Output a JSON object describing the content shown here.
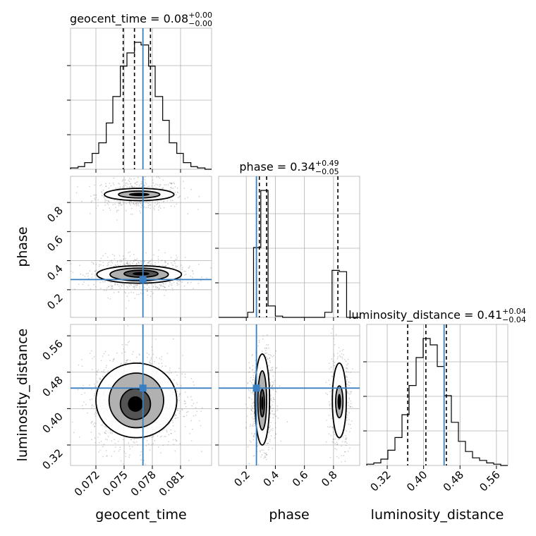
{
  "chart_data": {
    "type": "corner",
    "parameters": [
      "geocent_time",
      "phase",
      "luminosity_distance"
    ],
    "titles": [
      {
        "name": "geocent_time",
        "median": "0.08",
        "plus": "+0.00",
        "minus": "−0.00"
      },
      {
        "name": "phase",
        "median": "0.34",
        "plus": "+0.49",
        "minus": "−0.05"
      },
      {
        "name": "luminosity_distance",
        "median": "0.41",
        "plus": "+0.04",
        "minus": "−0.04"
      }
    ],
    "axes": {
      "geocent_time": {
        "range": [
          0.0693,
          0.0843
        ],
        "ticks": [
          "0.072",
          "0.075",
          "0.078",
          "0.081"
        ]
      },
      "phase": {
        "range": [
          0.01,
          0.98
        ],
        "ticks": [
          "0.2",
          "0.4",
          "0.6",
          "0.8"
        ]
      },
      "luminosity_distance": {
        "range": [
          0.275,
          0.585
        ],
        "ticks": [
          "0.32",
          "0.40",
          "0.48",
          "0.56"
        ]
      }
    },
    "truths": {
      "geocent_time": 0.077,
      "phase": 0.27,
      "luminosity_distance": 0.445
    },
    "quantiles": {
      "geocent_time": [
        0.0749,
        0.0761,
        0.0778
      ],
      "phase": [
        0.29,
        0.34,
        0.83
      ],
      "luminosity_distance": [
        0.365,
        0.405,
        0.45
      ]
    },
    "histograms": {
      "geocent_time": {
        "bin_edges": [
          0.0693,
          0.0701,
          0.0708,
          0.0716,
          0.0723,
          0.0731,
          0.0738,
          0.0746,
          0.0753,
          0.0761,
          0.0768,
          0.0776,
          0.0783,
          0.0791,
          0.0798,
          0.0806,
          0.0813,
          0.0821,
          0.0828,
          0.0836,
          0.0843
        ],
        "counts": [
          1,
          2,
          5,
          12,
          20,
          35,
          55,
          78,
          88,
          96,
          94,
          78,
          55,
          37,
          20,
          12,
          5,
          2,
          1,
          0
        ]
      },
      "phase": {
        "bin_edges": [
          0.01,
          0.06,
          0.11,
          0.16,
          0.21,
          0.25,
          0.3,
          0.35,
          0.4,
          0.45,
          0.5,
          0.55,
          0.6,
          0.64,
          0.69,
          0.74,
          0.79,
          0.84,
          0.89,
          0.94,
          0.98
        ],
        "counts": [
          0,
          0,
          0,
          0,
          4,
          55,
          100,
          9,
          1,
          0,
          0,
          0,
          0,
          0,
          0,
          4,
          37,
          36,
          0,
          0
        ]
      },
      "luminosity_distance": {
        "bin_edges": [
          0.275,
          0.2905,
          0.306,
          0.3215,
          0.337,
          0.3525,
          0.368,
          0.3835,
          0.399,
          0.4145,
          0.43,
          0.4455,
          0.461,
          0.4765,
          0.492,
          0.5075,
          0.523,
          0.5385,
          0.554,
          0.5695,
          0.585
        ],
        "counts": [
          1,
          2,
          5,
          12,
          22,
          40,
          63,
          85,
          100,
          95,
          78,
          55,
          34,
          19,
          11,
          6,
          4,
          2,
          1,
          0
        ]
      }
    },
    "blobs": {
      "geocent_time_vs_phase": [
        {
          "cx": 0.0766,
          "cy": 0.855,
          "sx": 0.002,
          "sy": 0.045,
          "n": 520
        },
        {
          "cx": 0.0766,
          "cy": 0.305,
          "sx": 0.0021,
          "sy": 0.05,
          "n": 900
        }
      ],
      "geocent_time_vs_luminosity_distance": [
        {
          "cx": 0.0764,
          "cy": 0.415,
          "sx": 0.0021,
          "sy": 0.044,
          "n": 1500
        }
      ],
      "phase_vs_luminosity_distance": [
        {
          "cx": 0.31,
          "cy": 0.418,
          "sx": 0.035,
          "sy": 0.045,
          "n": 900
        },
        {
          "cx": 0.84,
          "cy": 0.418,
          "sx": 0.033,
          "sy": 0.045,
          "n": 520
        }
      ]
    },
    "contours": {
      "geocent_time_vs_phase": [
        [
          {
            "cx": 0.0766,
            "cy": 0.855,
            "rx": 0.0037,
            "ry": 0.042
          },
          {
            "cx": 0.0766,
            "cy": 0.855,
            "rx": 0.0022,
            "ry": 0.024
          }
        ],
        [
          {
            "cx": 0.0766,
            "cy": 0.305,
            "rx": 0.0045,
            "ry": 0.06
          },
          {
            "cx": 0.0766,
            "cy": 0.305,
            "rx": 0.0031,
            "ry": 0.044
          },
          {
            "cx": 0.0768,
            "cy": 0.31,
            "rx": 0.0018,
            "ry": 0.024
          }
        ]
      ],
      "geocent_time_vs_luminosity_distance": [
        [
          {
            "cx": 0.0763,
            "cy": 0.418,
            "rx": 0.0043,
            "ry": 0.082
          },
          {
            "cx": 0.0763,
            "cy": 0.418,
            "rx": 0.0029,
            "ry": 0.06
          },
          {
            "cx": 0.0762,
            "cy": 0.41,
            "rx": 0.0016,
            "ry": 0.034
          }
        ]
      ],
      "phase_vs_luminosity_distance": [
        [
          {
            "cx": 0.31,
            "cy": 0.42,
            "rx": 0.05,
            "ry": 0.1
          },
          {
            "cx": 0.31,
            "cy": 0.418,
            "rx": 0.03,
            "ry": 0.065
          },
          {
            "cx": 0.31,
            "cy": 0.412,
            "rx": 0.015,
            "ry": 0.03
          }
        ],
        [
          {
            "cx": 0.84,
            "cy": 0.418,
            "rx": 0.048,
            "ry": 0.082
          },
          {
            "cx": 0.84,
            "cy": 0.415,
            "rx": 0.025,
            "ry": 0.035
          }
        ]
      ]
    },
    "grid": true
  }
}
